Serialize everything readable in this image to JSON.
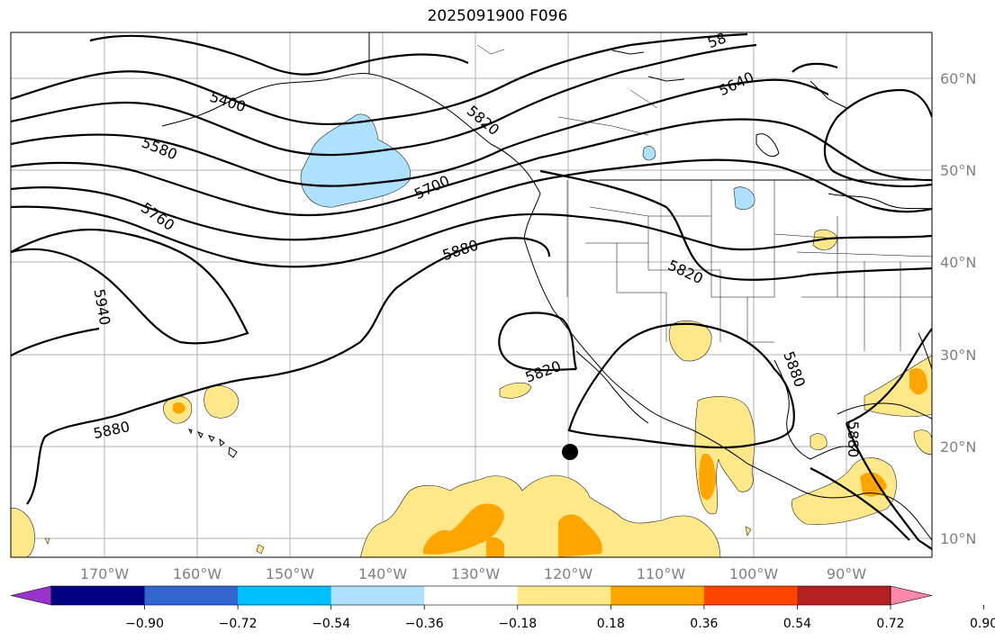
{
  "title": "2025091900 F096",
  "map": {
    "lon_labels": [
      "170°W",
      "160°W",
      "150°W",
      "140°W",
      "130°W",
      "120°W",
      "110°W",
      "100°W",
      "90°W"
    ],
    "lat_labels": [
      "60°N",
      "50°N",
      "40°N",
      "30°N",
      "20°N",
      "10°N"
    ],
    "contour_labels": [
      "5400",
      "5580",
      "5760",
      "5940",
      "5880",
      "5700",
      "5880",
      "5820",
      "5640",
      "5820",
      "5880",
      "5880",
      "58",
      "5820"
    ],
    "marker": {
      "name": "storm-center-dot",
      "color": "#000000"
    }
  },
  "colorbar": {
    "colors": [
      "#9933cc",
      "#000080",
      "#3366cc",
      "#00bfff",
      "#aee0ff",
      "#ffffff",
      "#ffe88a",
      "#ffa500",
      "#ff4500",
      "#b22222",
      "#ff88aa"
    ],
    "ticks": [
      "−0.90",
      "−0.72",
      "−0.54",
      "−0.36",
      "−0.18",
      "0.18",
      "0.36",
      "0.54",
      "0.72",
      "0.90"
    ]
  }
}
